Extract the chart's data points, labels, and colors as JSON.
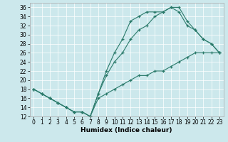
{
  "title": "",
  "xlabel": "Humidex (Indice chaleur)",
  "bg_color": "#cce8ec",
  "line_color": "#2a7a6a",
  "xlim": [
    -0.5,
    23.5
  ],
  "ylim": [
    12,
    37
  ],
  "yticks": [
    12,
    14,
    16,
    18,
    20,
    22,
    24,
    26,
    28,
    30,
    32,
    34,
    36
  ],
  "xticks": [
    0,
    1,
    2,
    3,
    4,
    5,
    6,
    7,
    8,
    9,
    10,
    11,
    12,
    13,
    14,
    15,
    16,
    17,
    18,
    19,
    20,
    21,
    22,
    23
  ],
  "curve1_x": [
    0,
    1,
    2,
    3,
    4,
    5,
    6,
    7,
    8,
    9,
    10,
    11,
    12,
    13,
    14,
    15,
    16,
    17,
    18,
    19,
    20,
    21,
    22,
    23
  ],
  "curve1_y": [
    18,
    17,
    16,
    15,
    14,
    13,
    13,
    12,
    17,
    22,
    26,
    29,
    33,
    34,
    35,
    35,
    35,
    36,
    36,
    33,
    31,
    29,
    28,
    26
  ],
  "curve2_x": [
    0,
    1,
    2,
    3,
    4,
    5,
    6,
    7,
    8,
    9,
    10,
    11,
    12,
    13,
    14,
    15,
    16,
    17,
    18,
    19,
    20,
    21,
    22,
    23
  ],
  "curve2_y": [
    18,
    17,
    16,
    15,
    14,
    13,
    13,
    12,
    17,
    21,
    24,
    26,
    29,
    31,
    32,
    34,
    35,
    36,
    35,
    32,
    31,
    29,
    28,
    26
  ],
  "curve3_x": [
    0,
    1,
    2,
    3,
    4,
    5,
    6,
    7,
    8,
    9,
    10,
    11,
    12,
    13,
    14,
    15,
    16,
    17,
    18,
    19,
    20,
    21,
    22,
    23
  ],
  "curve3_y": [
    18,
    17,
    16,
    15,
    14,
    13,
    13,
    12,
    16,
    17,
    18,
    19,
    20,
    21,
    21,
    22,
    22,
    23,
    24,
    25,
    26,
    26,
    26,
    26
  ],
  "tick_fontsize": 5.5,
  "xlabel_fontsize": 6.5
}
